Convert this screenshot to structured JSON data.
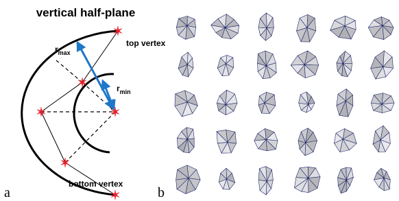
{
  "title": "vertical half-plane",
  "labels": {
    "r_max": {
      "base": "r",
      "sub": "max"
    },
    "r_min": {
      "base": "r",
      "sub": "min"
    },
    "top_vertex": "top vertex",
    "bottom_vertex": "bottom vertex"
  },
  "panels": {
    "a": "a",
    "b": "b"
  }
}
